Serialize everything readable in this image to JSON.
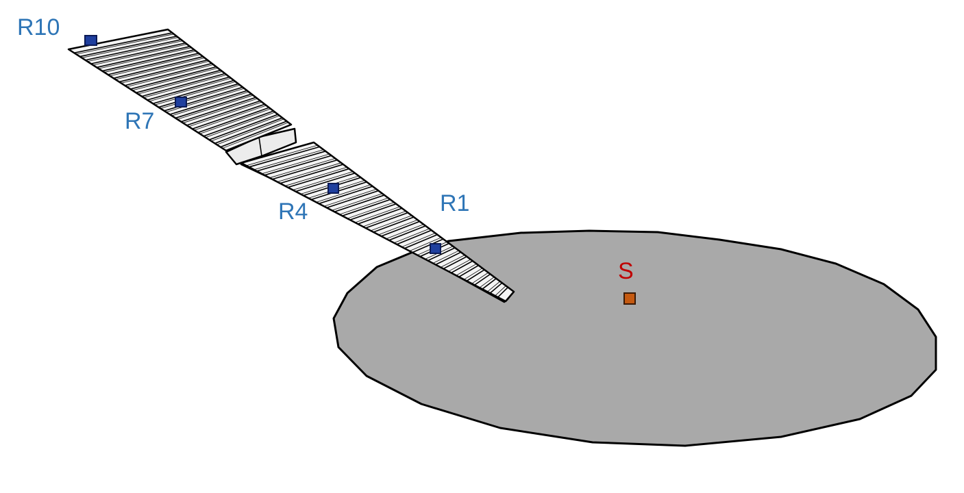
{
  "diagram": {
    "receivers": [
      {
        "id": "R1",
        "label": "R1"
      },
      {
        "id": "R4",
        "label": "R4"
      },
      {
        "id": "R7",
        "label": "R7"
      },
      {
        "id": "R10",
        "label": "R10"
      }
    ],
    "source": {
      "id": "S",
      "label": "S"
    },
    "colors": {
      "receiver_label": "#2e75b6",
      "receiver_marker": "#1f3f9e",
      "source_label": "#c00000",
      "source_marker": "#c55a11",
      "stage_floor": "#a9a9a9",
      "seating_fill": "#f4f4f4",
      "outline": "#000000"
    }
  }
}
